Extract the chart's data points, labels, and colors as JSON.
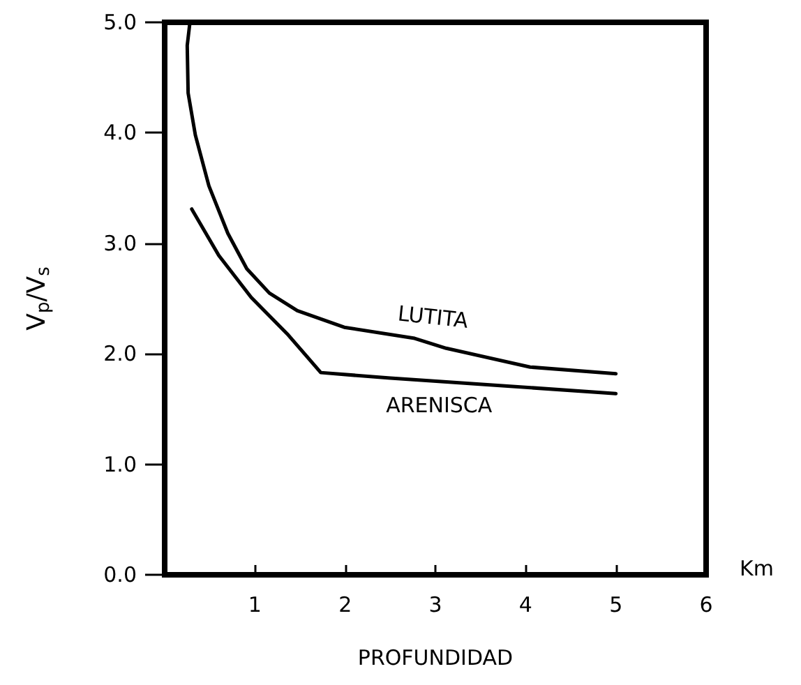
{
  "chart_data": {
    "type": "line",
    "xlabel": "PROFUNDIDAD",
    "ylabel": "V$_{p}$/V$_{s}$",
    "annotations": [
      "Km"
    ],
    "xlim": [
      0,
      6
    ],
    "xticks": [
      {
        "value": 0,
        "label": null
      },
      1,
      2,
      3,
      4,
      5,
      6
    ],
    "ylim": [
      0,
      5
    ],
    "yticks": [
      {
        "value": 0,
        "label": "0.0"
      },
      {
        "value": 1,
        "label": "1.0"
      },
      {
        "value": 2,
        "label": "2.0"
      },
      {
        "value": 3,
        "label": "3.0"
      },
      {
        "value": 4,
        "label": "4.0"
      },
      {
        "value": 5,
        "label": "5.0"
      }
    ],
    "grid": false,
    "legend": false,
    "marker": "none",
    "line_style": "solid",
    "series": [
      {
        "name": "LUTITA",
        "color": "#000000",
        "x": [
          0.28,
          0.25,
          0.26,
          0.34,
          0.49,
          0.7,
          0.91,
          1.16,
          1.47,
          1.99,
          2.77,
          3.12,
          4.05,
          5.0
        ],
        "values": [
          5.0,
          4.79,
          4.36,
          3.98,
          3.52,
          3.09,
          2.77,
          2.55,
          2.39,
          2.24,
          2.14,
          2.05,
          1.88,
          1.82
        ]
      },
      {
        "name": "ARENISCA",
        "color": "#000000",
        "x": [
          0.3,
          0.6,
          0.96,
          1.37,
          1.73,
          2.5,
          2.7,
          5.0
        ],
        "values": [
          3.31,
          2.89,
          2.51,
          2.17,
          1.83,
          1.78,
          1.77,
          1.64
        ]
      }
    ]
  }
}
